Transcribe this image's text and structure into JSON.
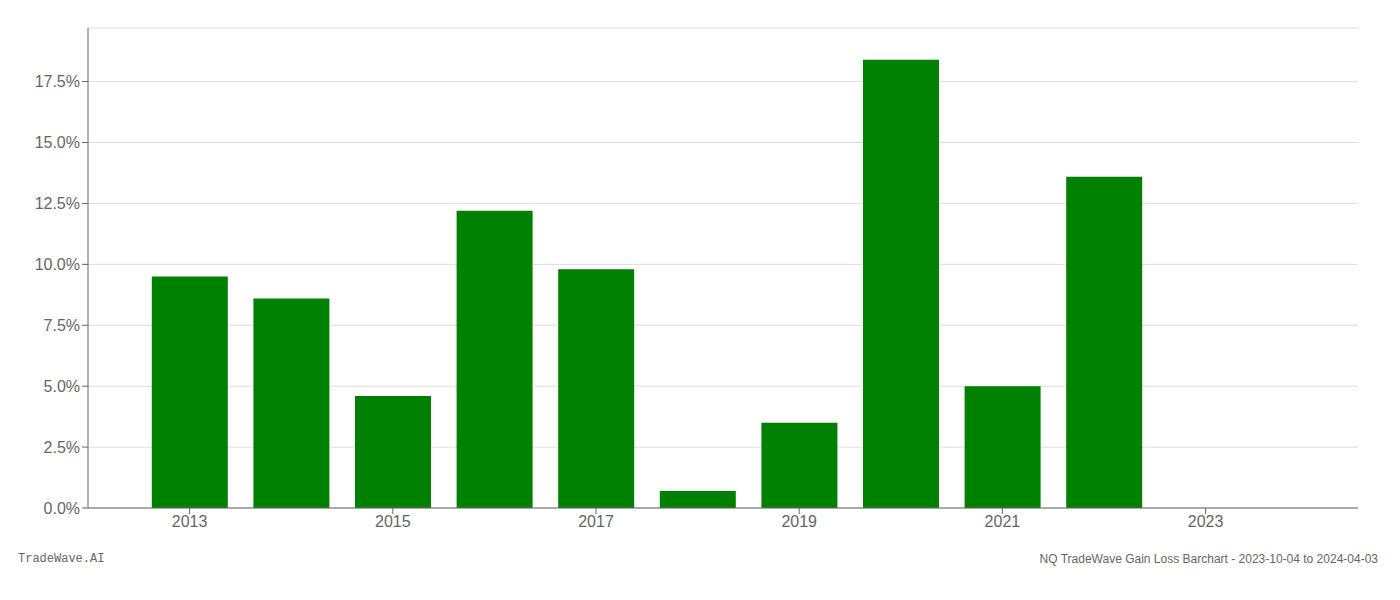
{
  "chart_data": {
    "type": "bar",
    "x": [
      2013,
      2014,
      2015,
      2016,
      2017,
      2018,
      2019,
      2020,
      2021,
      2022,
      2023
    ],
    "values": [
      0.095,
      0.086,
      0.046,
      0.122,
      0.098,
      0.007,
      0.035,
      0.184,
      0.05,
      0.136,
      0.0
    ],
    "color": "#008000",
    "xlim": [
      2012.0,
      2024.5
    ],
    "xticks": [
      2013,
      2015,
      2017,
      2019,
      2021,
      2023
    ],
    "ylim": [
      0.0,
      0.197
    ],
    "yticks": [
      {
        "value": 0.0,
        "label": "0.0%"
      },
      {
        "value": 0.025,
        "label": "2.5%"
      },
      {
        "value": 0.05,
        "label": "5.0%"
      },
      {
        "value": 0.075,
        "label": "7.5%"
      },
      {
        "value": 0.1,
        "label": "10.0%"
      },
      {
        "value": 0.125,
        "label": "12.5%"
      },
      {
        "value": 0.15,
        "label": "15.0%"
      },
      {
        "value": 0.175,
        "label": "17.5%"
      }
    ],
    "grid": true,
    "annotations": [
      "TradeWave.AI",
      "NQ TradeWave Gain Loss Barchart - 2023-10-04 to 2024-04-03"
    ]
  }
}
